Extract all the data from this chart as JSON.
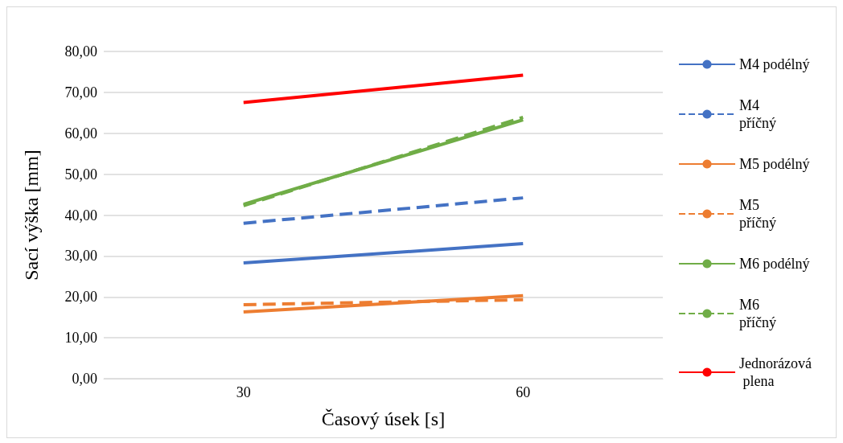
{
  "chart_data": {
    "type": "line",
    "xlabel": "Časový úsek [s]",
    "ylabel": "Sací výška [mm]",
    "categories": [
      "30",
      "60"
    ],
    "ylim": [
      0,
      80
    ],
    "yticks": [
      {
        "value": 0,
        "label": "0,00"
      },
      {
        "value": 10,
        "label": "10,00"
      },
      {
        "value": 20,
        "label": "20,00"
      },
      {
        "value": 30,
        "label": "30,00"
      },
      {
        "value": 40,
        "label": "40,00"
      },
      {
        "value": 50,
        "label": "50,00"
      },
      {
        "value": 60,
        "label": "60,00"
      },
      {
        "value": 70,
        "label": "70,00"
      },
      {
        "value": 80,
        "label": "80,00"
      }
    ],
    "grid": "y",
    "legend": "right",
    "marker": "none",
    "series": [
      {
        "name": "M4 podélný",
        "color": "#4472c4",
        "line_style": "solid",
        "values": [
          28.3,
          33.0
        ]
      },
      {
        "name": "M4 příčný",
        "color": "#4472c4",
        "line_style": "dashed",
        "values": [
          38.0,
          44.2
        ]
      },
      {
        "name": "M5 podélný",
        "color": "#ed7d31",
        "line_style": "solid",
        "values": [
          16.3,
          20.3
        ]
      },
      {
        "name": "M5 příčný",
        "color": "#ed7d31",
        "line_style": "dashed",
        "values": [
          18.1,
          19.3
        ]
      },
      {
        "name": "M6 podélný",
        "color": "#70ad47",
        "line_style": "solid",
        "values": [
          42.6,
          63.3
        ]
      },
      {
        "name": "M6 příčný",
        "color": "#70ad47",
        "line_style": "dashed",
        "values": [
          42.3,
          63.9
        ]
      },
      {
        "name": "Jednorázová plena",
        "color": "#ff0000",
        "line_style": "solid",
        "values": [
          67.5,
          74.2
        ]
      }
    ]
  }
}
